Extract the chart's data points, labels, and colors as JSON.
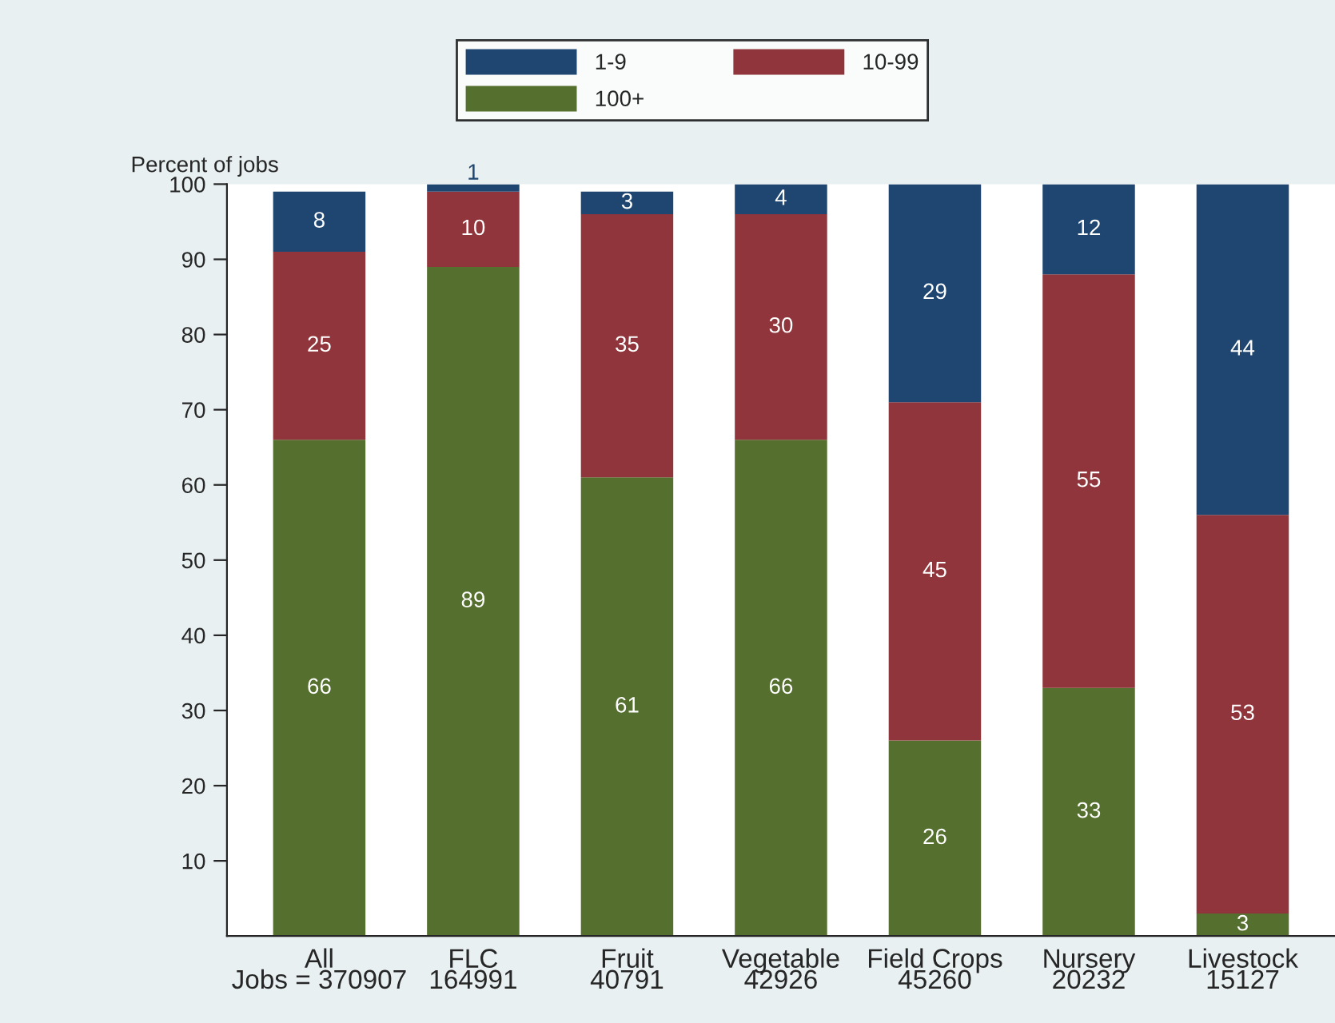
{
  "chart_data": {
    "type": "bar",
    "stacked": true,
    "ylabel": "Percent of jobs",
    "categories": [
      "All\nJobs = 370907",
      "FLC\n164991",
      "Fruit\n40791",
      "Vegetable\n42926",
      "Field Crops\n45260",
      "Nursery\n20232",
      "Livestock\n15127"
    ],
    "series": [
      {
        "name": "100+",
        "color": "#556f2e",
        "values": [
          66,
          89,
          61,
          66,
          26,
          33,
          3
        ]
      },
      {
        "name": "10-99",
        "color": "#90353b",
        "values": [
          25,
          10,
          35,
          30,
          45,
          55,
          53
        ]
      },
      {
        "name": "1-9",
        "color": "#1f4670",
        "values": [
          8,
          1,
          3,
          4,
          29,
          12,
          44
        ]
      }
    ],
    "ylim": [
      0,
      100
    ],
    "yticks": [
      10,
      20,
      30,
      40,
      50,
      60,
      70,
      80,
      90,
      100
    ],
    "data_labels": true,
    "grid": false,
    "legend": "top"
  }
}
